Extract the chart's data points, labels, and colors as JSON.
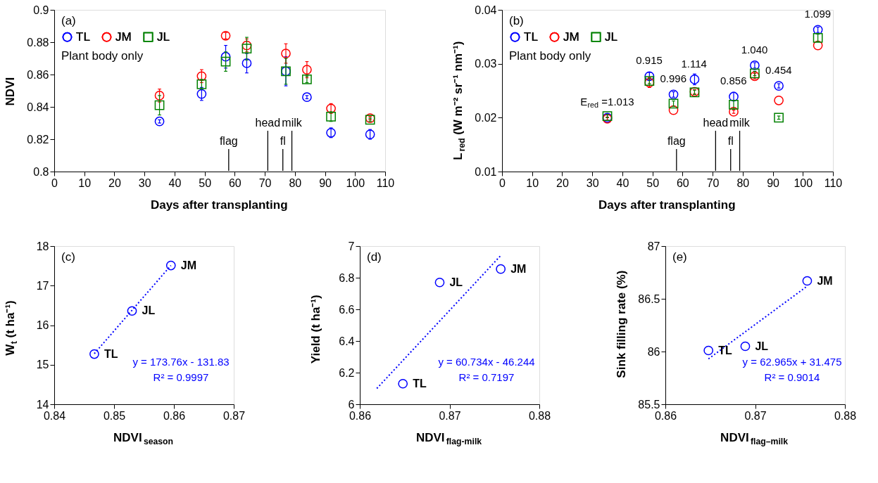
{
  "chart_data": [
    {
      "type": "scatter",
      "xlabel": "Days after transplanting",
      "ylabel": "NDVI",
      "x": [
        35,
        49,
        57,
        64,
        77,
        84,
        92,
        105
      ],
      "series": [
        {
          "name": "TL",
          "color": "#0000ff",
          "marker": "circle",
          "values": [
            0.831,
            0.848,
            0.871,
            0.867,
            0.862,
            0.846,
            0.824,
            0.823
          ],
          "errors": [
            0.001,
            0.004,
            0.007,
            0.006,
            0.009,
            0.001,
            0.003,
            0.003
          ]
        },
        {
          "name": "JM",
          "color": "#ff0000",
          "marker": "circle",
          "values": [
            0.847,
            0.859,
            0.884,
            0.878,
            0.873,
            0.863,
            0.839,
            0.833
          ],
          "errors": [
            0.004,
            0.004,
            0.002,
            0.004,
            0.006,
            0.005,
            0.003,
            0.001
          ]
        },
        {
          "name": "JL",
          "color": "#008000",
          "marker": "square",
          "values": [
            0.841,
            0.854,
            0.868,
            0.876,
            0.862,
            0.857,
            0.834,
            0.832
          ],
          "errors": [
            0.006,
            0.003,
            0.006,
            0.007,
            0.008,
            0.002,
            0.003,
            0.001
          ]
        }
      ],
      "xlim": [
        0,
        110
      ],
      "xticks": [
        0,
        10,
        20,
        30,
        40,
        50,
        60,
        70,
        80,
        90,
        100,
        110
      ],
      "ylim": [
        0.8,
        0.9
      ],
      "yticks": [
        0.8,
        0.82,
        0.84,
        0.86,
        0.88,
        0.9
      ],
      "ref_lines": [
        {
          "axis": "x",
          "value": 58,
          "label": "flag"
        },
        {
          "axis": "x",
          "value": 71,
          "label": "head"
        },
        {
          "axis": "x",
          "value": 76,
          "label": "fl"
        },
        {
          "axis": "x",
          "value": 79,
          "label": "milk"
        }
      ],
      "annotations": [
        "(a)",
        "Plant body only"
      ],
      "legend": "top left",
      "grid": false
    },
    {
      "type": "scatter",
      "xlabel": "Days after transplanting",
      "ylabel": "L$_{red}$ (W m⁻² sr⁻¹ nm⁻¹)",
      "x": [
        35,
        49,
        57,
        64,
        77,
        84,
        92,
        105
      ],
      "series": [
        {
          "name": "TL",
          "color": "#0000ff",
          "marker": "circle",
          "values": [
            0.02,
            0.0277,
            0.0243,
            0.0271,
            0.0239,
            0.0297,
            0.0259,
            0.0363
          ],
          "errors": [
            0.0005,
            0.0007,
            0.0005,
            0.001,
            0.0008,
            0.0005,
            0.0004,
            0.0005
          ]
        },
        {
          "name": "JM",
          "color": "#ff0000",
          "marker": "circle",
          "values": [
            0.0198,
            0.0265,
            0.0214,
            0.0248,
            0.0211,
            0.0277,
            0.0232,
            0.0334
          ],
          "errors": [
            0.0003,
            0.0009,
            null,
            0.0004,
            0.0003,
            0.0005,
            null,
            null
          ]
        },
        {
          "name": "JL",
          "color": "#008000",
          "marker": "square",
          "values": [
            0.0203,
            0.0268,
            0.0226,
            0.0247,
            0.0224,
            0.0282,
            0.02,
            0.0348
          ],
          "errors": [
            0.0003,
            0.0005,
            0.0005,
            0.0004,
            0.0008,
            0.0004,
            0.0003,
            0.0007
          ]
        }
      ],
      "xlim": [
        0,
        110
      ],
      "xticks": [
        0,
        10,
        20,
        30,
        40,
        50,
        60,
        70,
        80,
        90,
        100,
        110
      ],
      "ylim": [
        0.01,
        0.04
      ],
      "yticks": [
        0.01,
        0.02,
        0.03,
        0.04
      ],
      "ref_lines": [
        {
          "axis": "x",
          "value": 58,
          "label": "flag"
        },
        {
          "axis": "x",
          "value": 71,
          "label": "head"
        },
        {
          "axis": "x",
          "value": 76,
          "label": "fl"
        },
        {
          "axis": "x",
          "value": 79,
          "label": "milk"
        }
      ],
      "annotations": [
        "(b)",
        "Plant body only",
        {
          "text": "E$_{red}$ =1.013",
          "x": 35,
          "y": 0.02
        },
        {
          "text": "0.915",
          "x": 49,
          "y": 0.0277
        },
        {
          "text": "0.996",
          "x": 57,
          "y": 0.0243
        },
        {
          "text": "1.114",
          "x": 64,
          "y": 0.0271
        },
        {
          "text": "0.856",
          "x": 77,
          "y": 0.0239
        },
        {
          "text": "1.040",
          "x": 84,
          "y": 0.0297
        },
        {
          "text": "0.454",
          "x": 92,
          "y": 0.0259
        },
        {
          "text": "1.099",
          "x": 105,
          "y": 0.0363
        }
      ],
      "legend": "top left",
      "grid": false
    },
    {
      "type": "scatter",
      "xlabel": "NDVI$_{season}$",
      "ylabel": "W$_{t}$ (t ha⁻¹)",
      "series": [
        {
          "color": "#0000ff",
          "marker": "circle",
          "x": [
            0.8467,
            0.853,
            0.8595
          ],
          "values": [
            15.27,
            16.36,
            17.51
          ]
        },
        {
          "type": "line",
          "color": "#0000ff",
          "line_style": "dotted",
          "x": [
            0.8467,
            0.8595
          ],
          "values": [
            15.28,
            17.51
          ]
        }
      ],
      "xlim": [
        0.84,
        0.87
      ],
      "xticks": [
        0.84,
        0.85,
        0.86,
        0.87
      ],
      "ylim": [
        14,
        18
      ],
      "yticks": [
        14,
        15,
        16,
        17,
        18
      ],
      "annotations": [
        "(c)",
        "y = 173.76x - 131.83",
        "R² = 0.9997",
        {
          "text": "TL",
          "x": 0.8467,
          "y": 15.27
        },
        {
          "text": "JL",
          "x": 0.853,
          "y": 16.36
        },
        {
          "text": "JM",
          "x": 0.8595,
          "y": 17.51
        }
      ],
      "grid": false
    },
    {
      "type": "scatter",
      "xlabel": "NDVI$_{flag-milk}$",
      "ylabel": "Yield (t ha⁻¹)",
      "series": [
        {
          "color": "#0000ff",
          "marker": "circle",
          "x": [
            0.8648,
            0.8689,
            0.8757
          ],
          "values": [
            6.13,
            6.77,
            6.855
          ]
        },
        {
          "type": "line",
          "color": "#0000ff",
          "line_style": "dotted",
          "x": [
            0.8619,
            0.8757
          ],
          "values": [
            6.1,
            6.94
          ]
        }
      ],
      "xlim": [
        0.86,
        0.88
      ],
      "xticks": [
        0.86,
        0.87,
        0.88
      ],
      "ylim": [
        6,
        7
      ],
      "yticks": [
        6,
        6.2,
        6.4,
        6.6,
        6.8,
        7
      ],
      "annotations": [
        "(d)",
        "y = 60.734x - 46.244",
        "R² = 0.7197",
        {
          "text": "TL",
          "x": 0.8648,
          "y": 6.13
        },
        {
          "text": "JL",
          "x": 0.8689,
          "y": 6.77
        },
        {
          "text": "JM",
          "x": 0.8757,
          "y": 6.855
        }
      ],
      "grid": false
    },
    {
      "type": "scatter",
      "xlabel": "NDVI$_{flag–milk}$",
      "ylabel": "Sink filling rate (%)",
      "series": [
        {
          "color": "#0000ff",
          "marker": "circle",
          "x": [
            0.8648,
            0.8689,
            0.8758
          ],
          "values": [
            86.01,
            86.05,
            86.67
          ]
        },
        {
          "type": "line",
          "color": "#0000ff",
          "line_style": "dotted",
          "x": [
            0.8648,
            0.8758
          ],
          "values": [
            85.93,
            86.62
          ]
        }
      ],
      "xlim": [
        0.86,
        0.88
      ],
      "xticks": [
        0.86,
        0.87,
        0.88
      ],
      "ylim": [
        85.5,
        87
      ],
      "yticks": [
        85.5,
        86,
        86.5,
        87
      ],
      "annotations": [
        "(e)",
        "y = 62.965x + 31.475",
        "R² = 0.9014",
        {
          "text": "TL",
          "x": 0.8648,
          "y": 86.01
        },
        {
          "text": "JL",
          "x": 0.8689,
          "y": 86.05
        },
        {
          "text": "JM",
          "x": 0.8758,
          "y": 86.67
        }
      ],
      "grid": false
    }
  ]
}
